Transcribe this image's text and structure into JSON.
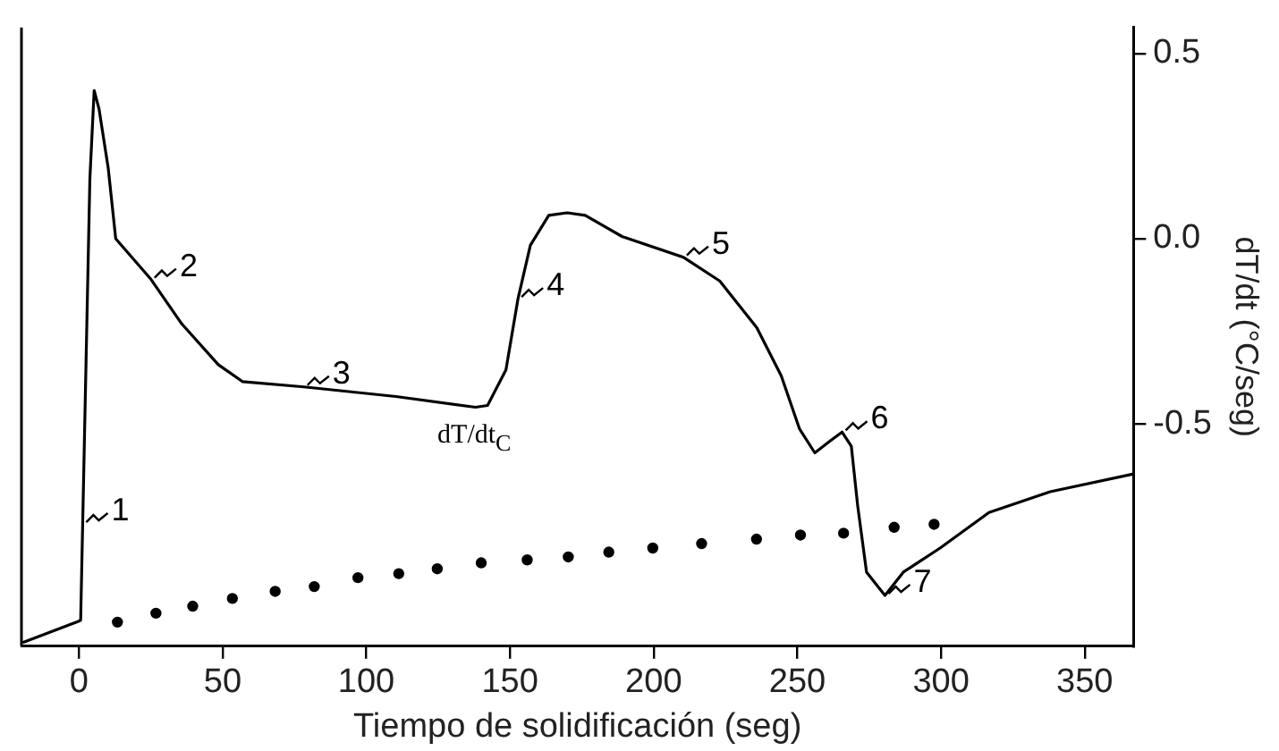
{
  "chart_data": {
    "type": "line",
    "xlabel": "Tiempo de solidificación (seg)",
    "ylabel": "dT/dt (°C/seg)",
    "xlim": [
      -20,
      367
    ],
    "xticks": [
      0,
      50,
      100,
      150,
      200,
      250,
      300,
      350
    ],
    "ylim": [
      -1.1,
      0.57
    ],
    "yticks": [
      {
        "value": -0.5,
        "label": "-0.5"
      },
      {
        "value": 0,
        "label": "0.0"
      },
      {
        "value": 0.5,
        "label": "0.5"
      }
    ],
    "grid": false,
    "legend": false,
    "line_style": "solid",
    "series": [
      {
        "marker": "none",
        "color": "#000000",
        "x": [
          -19.6,
          -0.8,
          0.6,
          1.3,
          3.8,
          5.3,
          7,
          10.2,
          12.8,
          25.1,
          35.8,
          48.5,
          57,
          78.3,
          110.3,
          138,
          142.2,
          148.6,
          152.8,
          157.1,
          163.5,
          169.9,
          176.2,
          189,
          210.3,
          223,
          235.9,
          244.4,
          250.8,
          256.1,
          261.4,
          265.6,
          268.8,
          271,
          274.1,
          280.5,
          286.9,
          299.7,
          316.7,
          338,
          367
        ],
        "values": [
          -1.09,
          -1.035,
          -1.03,
          -0.77,
          0.16,
          0.4,
          0.35,
          0.19,
          0,
          -0.11,
          -0.23,
          -0.34,
          -0.386,
          -0.4,
          -0.426,
          -0.455,
          -0.45,
          -0.354,
          -0.162,
          -0.018,
          0.063,
          0.07,
          0.063,
          0.006,
          -0.05,
          -0.114,
          -0.24,
          -0.37,
          -0.514,
          -0.578,
          -0.546,
          -0.522,
          -0.56,
          -0.72,
          -0.9,
          -0.963,
          -0.9,
          -0.835,
          -0.739,
          -0.683,
          -0.635
        ]
      },
      {
        "type": "scatter",
        "marker": "circle",
        "color": "#000000",
        "x": [
          13.4,
          26.8,
          39.6,
          53.4,
          68.3,
          81.9,
          97.1,
          111.3,
          124.7,
          140,
          156,
          170.3,
          184.4,
          199.7,
          216.7,
          235.8,
          251.1,
          266.1,
          283.7,
          297.6
        ],
        "values": [
          -1.035,
          -1.011,
          -0.992,
          -0.971,
          -0.952,
          -0.939,
          -0.915,
          -0.904,
          -0.891,
          -0.875,
          -0.867,
          -0.859,
          -0.846,
          -0.835,
          -0.823,
          -0.811,
          -0.8,
          -0.795,
          -0.779,
          -0.771
        ]
      }
    ],
    "annotations": [
      {
        "text": "1",
        "x": 1.3,
        "y": -0.77
      },
      {
        "text": "2",
        "x": 25.1,
        "y": -0.11
      },
      {
        "text": "3",
        "x": 78.3,
        "y": -0.4
      },
      {
        "text": "4",
        "x": 152.8,
        "y": -0.162
      },
      {
        "text": "5",
        "x": 210.3,
        "y": -0.05
      },
      {
        "text": "6",
        "x": 265.6,
        "y": -0.522
      },
      {
        "text": "7",
        "x": 280.5,
        "y": -0.963
      },
      {
        "text": "dT/dt$_{C}$",
        "x": 138,
        "y": -0.455
      }
    ]
  }
}
